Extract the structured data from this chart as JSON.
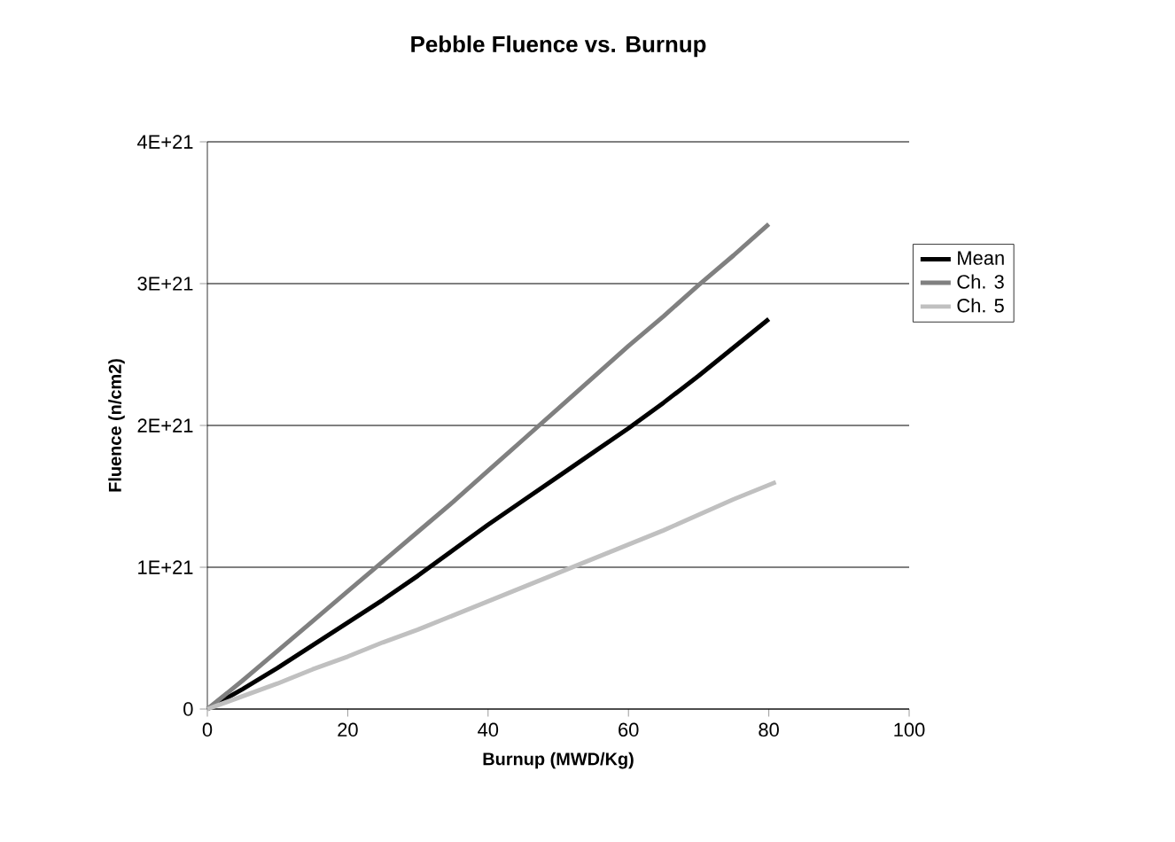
{
  "chart_data": {
    "type": "line",
    "title": "Pebble Fluence vs. Burnup",
    "xlabel": "Burnup (MWD/Kg)",
    "ylabel": "Fluence (n/cm2)",
    "x": [
      0,
      5,
      10,
      15,
      20,
      25,
      30,
      35,
      40,
      45,
      50,
      55,
      60,
      65,
      70,
      75,
      80
    ],
    "series": [
      {
        "name": "Mean",
        "color": "#000000",
        "values": [
          0,
          1.4e+20,
          2.9e+20,
          4.5e+20,
          6.1e+20,
          7.7e+20,
          9.4e+20,
          1.12e+21,
          1.3e+21,
          1.47e+21,
          1.64e+21,
          1.81e+21,
          1.98e+21,
          2.16e+21,
          2.35e+21,
          2.55e+21,
          2.75e+21
        ]
      },
      {
        "name": "Ch. 3",
        "color": "#808080",
        "values": [
          0,
          2e+20,
          4.1e+20,
          6.2e+20,
          8.3e+20,
          1.04e+21,
          1.25e+21,
          1.46e+21,
          1.68e+21,
          1.9e+21,
          2.12e+21,
          2.34e+21,
          2.56e+21,
          2.77e+21,
          2.99e+21,
          3.2e+21,
          3.42e+21
        ]
      },
      {
        "name": "Ch. 5",
        "color": "#c0c0c0",
        "x": [
          0,
          5,
          10,
          15,
          20,
          25,
          30,
          35,
          40,
          45,
          50,
          55,
          60,
          65,
          70,
          75,
          81
        ],
        "values": [
          0,
          9e+19,
          1.8e+20,
          2.8e+20,
          3.7e+20,
          4.7e+20,
          5.6e+20,
          6.6e+20,
          7.6e+20,
          8.6e+20,
          9.6e+20,
          1.06e+21,
          1.16e+21,
          1.26e+21,
          1.37e+21,
          1.48e+21,
          1.6e+21
        ]
      }
    ],
    "xlim": [
      0,
      100
    ],
    "xticks": [
      0,
      20,
      40,
      60,
      80,
      100
    ],
    "ylim": [
      0,
      4e+21
    ],
    "yticks": [
      0,
      {
        "value": 1e+21,
        "label": "1E+21"
      },
      {
        "value": 2e+21,
        "label": "2E+21"
      },
      {
        "value": 3e+21,
        "label": "3E+21"
      },
      {
        "value": 4e+21,
        "label": "4E+21"
      }
    ],
    "grid": "y",
    "legend": "right",
    "marker": "none",
    "line_style": "solid"
  }
}
